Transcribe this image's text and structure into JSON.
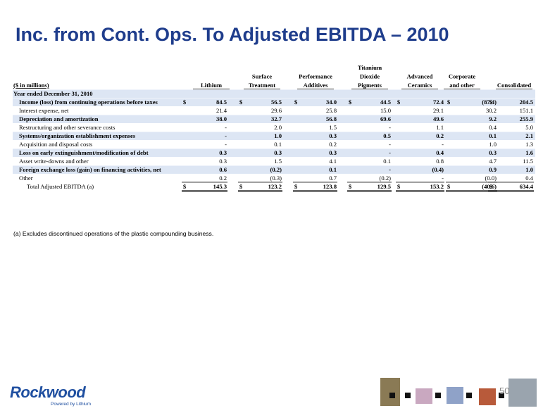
{
  "title": "Inc. from Cont. Ops. To Adjusted EBITDA – 2010",
  "table": {
    "units_label": "($ in millions)",
    "columns": [
      [
        "Lithium"
      ],
      [
        "Surface",
        "Treatment"
      ],
      [
        "Performance",
        "Additives"
      ],
      [
        "Titanium",
        "Dioxide",
        "Pigments"
      ],
      [
        "Advanced",
        "Ceramics"
      ],
      [
        "Corporate",
        "and other"
      ],
      [
        "Consolidated"
      ]
    ],
    "section": "Year ended December 31, 2010",
    "rows": [
      {
        "label": "Income (loss) from continuing operations before taxes",
        "bold": true,
        "cells": [
          {
            "symbol": "$",
            "amount": "84.5"
          },
          {
            "symbol": "$",
            "amount": "56.5"
          },
          {
            "symbol": "$",
            "amount": "34.0"
          },
          {
            "symbol": "$",
            "amount": "44.5"
          },
          {
            "symbol": "$",
            "amount": "72.4"
          },
          {
            "symbol": "$",
            "amount": "(87.4)"
          },
          {
            "symbol": "$",
            "amount": "204.5"
          }
        ]
      },
      {
        "label": "Interest expense, net",
        "bold": false,
        "cells": [
          "21.4",
          "29.6",
          "25.8",
          "15.0",
          "29.1",
          "30.2",
          "151.1"
        ]
      },
      {
        "label": "Depreciation and amortization",
        "bold": true,
        "cells": [
          "38.0",
          "32.7",
          "56.8",
          "69.6",
          "49.6",
          "9.2",
          "255.9"
        ]
      },
      {
        "label": "Restructuring and other severance costs",
        "bold": false,
        "cells": [
          "-",
          "2.0",
          "1.5",
          "-",
          "1.1",
          "0.4",
          "5.0"
        ]
      },
      {
        "label": "Systems/organization establishment expenses",
        "bold": true,
        "cells": [
          "-",
          "1.0",
          "0.3",
          "0.5",
          "0.2",
          "0.1",
          "2.1"
        ]
      },
      {
        "label": "Acquisition and disposal costs",
        "bold": false,
        "cells": [
          "-",
          "0.1",
          "0.2",
          "-",
          "-",
          "1.0",
          "1.3"
        ]
      },
      {
        "label": "Loss on early extinguishment/modification of debt",
        "bold": true,
        "cells": [
          "0.3",
          "0.3",
          "0.3",
          "-",
          "0.4",
          "0.3",
          "1.6"
        ]
      },
      {
        "label": "Asset write-downs and other",
        "bold": false,
        "cells": [
          "0.3",
          "1.5",
          "4.1",
          "0.1",
          "0.8",
          "4.7",
          "11.5"
        ]
      },
      {
        "label": "Foreign exchange loss (gain) on financing activities, net",
        "bold": true,
        "cells": [
          "0.6",
          "(0.2)",
          "0.1",
          "-",
          "(0.4)",
          "0.9",
          "1.0"
        ]
      },
      {
        "label": "Other",
        "bold": false,
        "cells": [
          "0.2",
          "(0.3)",
          "0.7",
          "(0.2)",
          "-",
          "(0.0)",
          "0.4"
        ]
      },
      {
        "label": "Total Adjusted EBITDA (a)",
        "bold": false,
        "cells": [
          {
            "symbol": "$",
            "amount": "145.3"
          },
          {
            "symbol": "$",
            "amount": "123.2"
          },
          {
            "symbol": "$",
            "amount": "123.8"
          },
          {
            "symbol": "$",
            "amount": "129.5"
          },
          {
            "symbol": "$",
            "amount": "153.2"
          },
          {
            "symbol": "$",
            "amount": "(40.6)"
          },
          {
            "symbol": "$",
            "amount": "634.4"
          }
        ]
      }
    ]
  },
  "footnote": "(a) Excludes discontinued operations of the plastic compounding business.",
  "logo": {
    "name": "Rockwood",
    "tagline": "Powered by Lithium"
  },
  "page_number": "50"
}
